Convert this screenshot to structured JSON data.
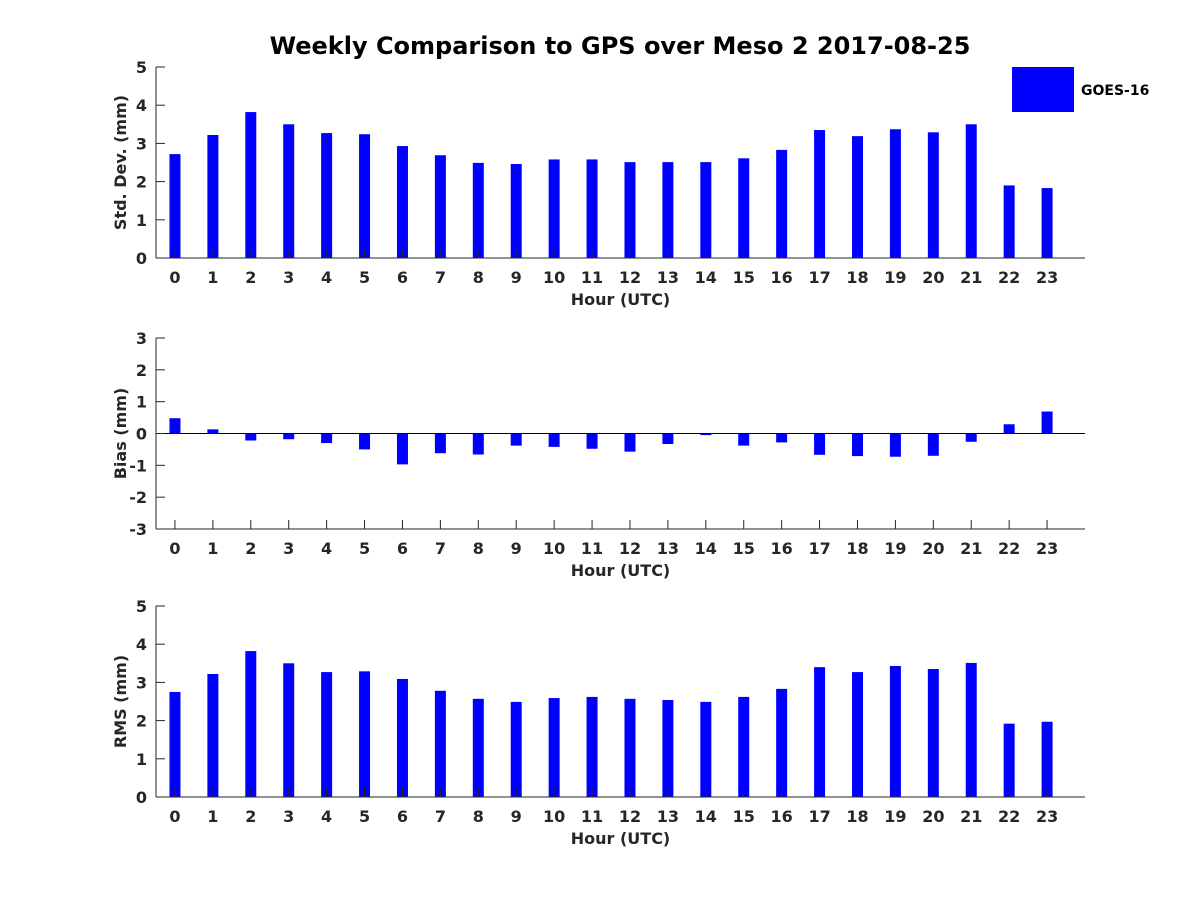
{
  "figure": {
    "title": "Weekly Comparison to GPS over Meso 2 2017-08-25",
    "legend": {
      "label": "GOES-16",
      "color": "#0000ff"
    }
  },
  "chart_data": [
    {
      "type": "bar",
      "series": [
        {
          "name": "GOES-16",
          "values": [
            2.72,
            3.22,
            3.82,
            3.5,
            3.27,
            3.24,
            2.93,
            2.69,
            2.49,
            2.46,
            2.58,
            2.58,
            2.51,
            2.51,
            2.51,
            2.61,
            2.83,
            3.35,
            3.19,
            3.37,
            3.29,
            3.5,
            1.9,
            1.83
          ]
        }
      ],
      "categories": [
        "0",
        "1",
        "2",
        "3",
        "4",
        "5",
        "6",
        "7",
        "8",
        "9",
        "10",
        "11",
        "12",
        "13",
        "14",
        "15",
        "16",
        "17",
        "18",
        "19",
        "20",
        "21",
        "22",
        "23"
      ],
      "xlabel": "Hour (UTC)",
      "ylabel": "Std. Dev. (mm)",
      "ylim": [
        0,
        5
      ],
      "yticks": [
        "0",
        "1",
        "2",
        "3",
        "4",
        "5"
      ]
    },
    {
      "type": "bar",
      "series": [
        {
          "name": "GOES-16",
          "values": [
            0.48,
            0.13,
            -0.22,
            -0.18,
            -0.3,
            -0.5,
            -0.97,
            -0.62,
            -0.66,
            -0.38,
            -0.42,
            -0.48,
            -0.57,
            -0.33,
            -0.05,
            -0.38,
            -0.28,
            -0.67,
            -0.71,
            -0.73,
            -0.7,
            -0.26,
            0.29,
            0.69
          ]
        }
      ],
      "categories": [
        "0",
        "1",
        "2",
        "3",
        "4",
        "5",
        "6",
        "7",
        "8",
        "9",
        "10",
        "11",
        "12",
        "13",
        "14",
        "15",
        "16",
        "17",
        "18",
        "19",
        "20",
        "21",
        "22",
        "23"
      ],
      "xlabel": "Hour (UTC)",
      "ylabel": "Bias (mm)",
      "ylim": [
        -3,
        3
      ],
      "yticks": [
        "-3",
        "-2",
        "-1",
        "0",
        "1",
        "2",
        "3"
      ]
    },
    {
      "type": "bar",
      "series": [
        {
          "name": "GOES-16",
          "values": [
            2.75,
            3.22,
            3.82,
            3.5,
            3.27,
            3.29,
            3.09,
            2.78,
            2.57,
            2.49,
            2.59,
            2.62,
            2.57,
            2.54,
            2.49,
            2.62,
            2.83,
            3.4,
            3.27,
            3.43,
            3.35,
            3.51,
            1.92,
            1.97
          ]
        }
      ],
      "categories": [
        "0",
        "1",
        "2",
        "3",
        "4",
        "5",
        "6",
        "7",
        "8",
        "9",
        "10",
        "11",
        "12",
        "13",
        "14",
        "15",
        "16",
        "17",
        "18",
        "19",
        "20",
        "21",
        "22",
        "23"
      ],
      "xlabel": "Hour (UTC)",
      "ylabel": "RMS (mm)",
      "ylim": [
        0,
        5
      ],
      "yticks": [
        "0",
        "1",
        "2",
        "3",
        "4",
        "5"
      ]
    }
  ]
}
